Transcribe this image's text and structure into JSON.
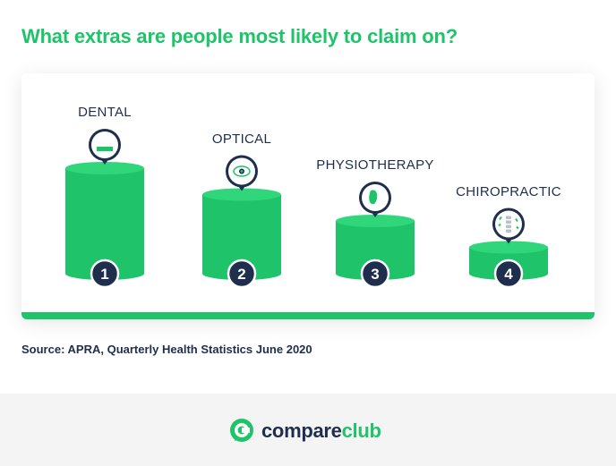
{
  "title": "What extras are people most likely to claim on?",
  "source": "Source: APRA, Quarterly Health Statistics June 2020",
  "brand": {
    "part1": "compare",
    "part2": "club"
  },
  "colors": {
    "green": "#1fc46a",
    "green_dark": "#14a755",
    "green_light": "#2fd67a",
    "navy": "#1f2e4d"
  },
  "chart_data": {
    "type": "bar",
    "title": "What extras are people most likely to claim on?",
    "categories": [
      "DENTAL",
      "OPTICAL",
      "PHYSIOTHERAPY",
      "CHIROPRACTIC"
    ],
    "values": [
      4,
      3,
      2,
      1
    ],
    "ranks": [
      "1",
      "2",
      "3",
      "4"
    ],
    "icons": [
      "tooth-icon",
      "eye-icon",
      "foot-icon",
      "spine-icon"
    ],
    "xlabel": "",
    "ylabel": "",
    "ylim": [
      0,
      4
    ]
  }
}
